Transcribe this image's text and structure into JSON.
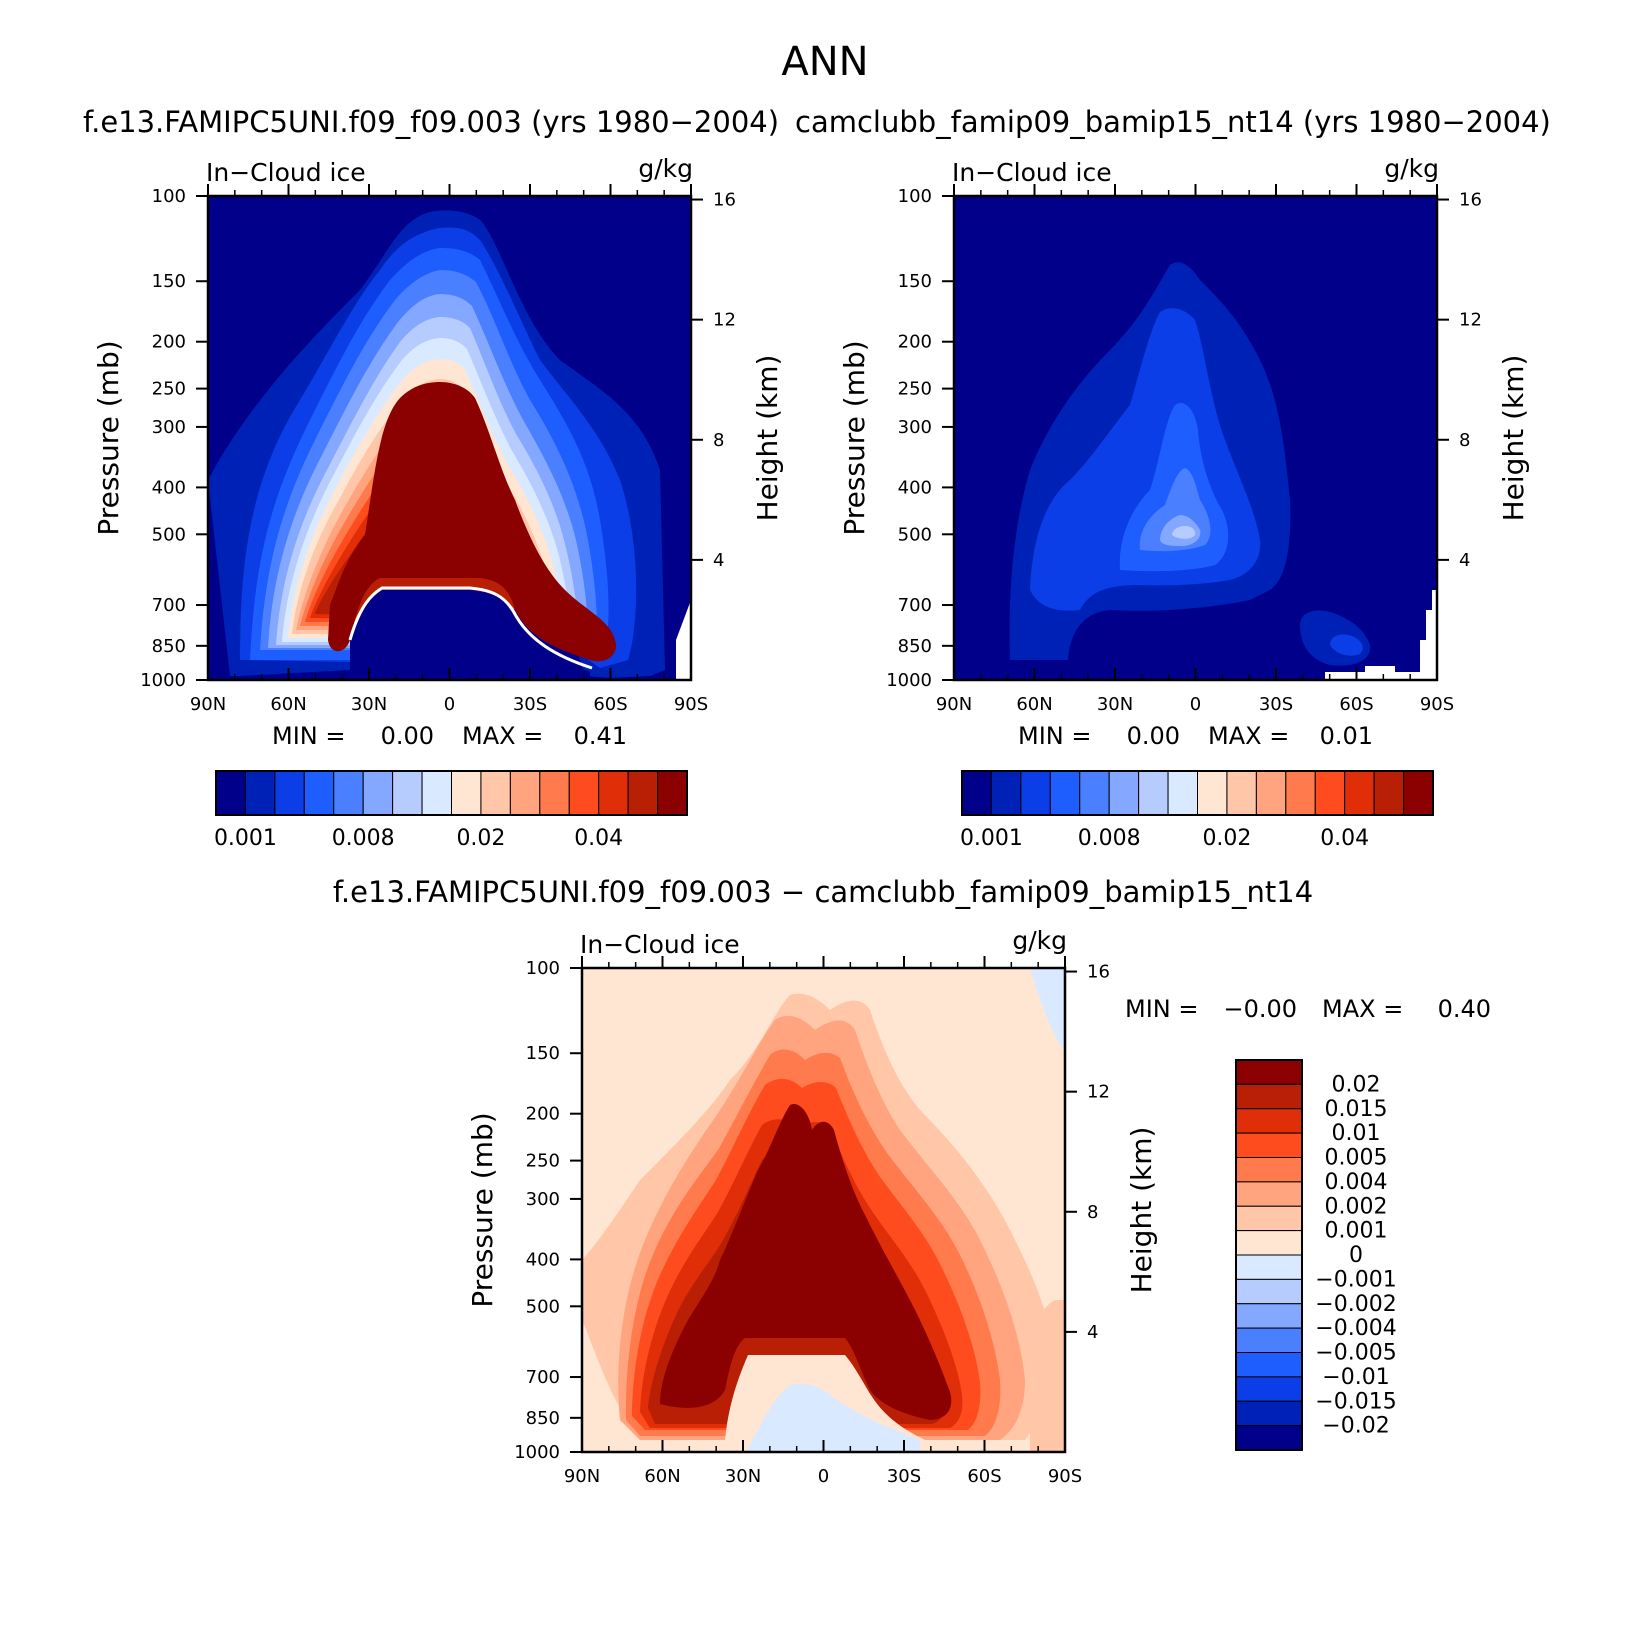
{
  "figure_title": "ANN",
  "chart_data": [
    {
      "type": "heatmap",
      "title": "f.e13.FAMIPC5UNI.f09_f09.003 (yrs 1980−2004)",
      "left_label": "In−Cloud ice",
      "right_label": "g/kg",
      "ylabel": "Pressure (mb)",
      "y2label": "Height (km)",
      "x_ticks": [
        "90N",
        "60N",
        "30N",
        "0",
        "30S",
        "60S",
        "90S"
      ],
      "y_ticks": [
        "100",
        "150",
        "200",
        "250",
        "300",
        "400",
        "500",
        "700",
        "850",
        "1000"
      ],
      "y_tick_values": [
        100,
        150,
        200,
        250,
        300,
        400,
        500,
        700,
        850,
        1000
      ],
      "y2_ticks": [
        "16",
        "12",
        "8",
        "4"
      ],
      "y2_tick_values": [
        16,
        12,
        8,
        4
      ],
      "xlim": [
        90,
        -90
      ],
      "ylim": [
        1000,
        100
      ],
      "min_label": "MIN =",
      "min_value": "0.00",
      "max_label": "MAX =",
      "max_value": "0.41",
      "colorbar_tick_labels": [
        "0.001",
        "0.008",
        "0.02",
        "0.04"
      ],
      "colorbar_colors": [
        "#00008a",
        "#0021b5",
        "#0b3ee6",
        "#1e5eff",
        "#4a7fff",
        "#84a8ff",
        "#b6ccff",
        "#d9e9ff",
        "#ffe6d2",
        "#ffc6a8",
        "#ffa47e",
        "#ff7a4c",
        "#ff4c1f",
        "#e02e08",
        "#b81f05",
        "#8b0000"
      ]
    },
    {
      "type": "heatmap",
      "title": "camclubb_famip09_bamip15_nt14 (yrs 1980−2004)",
      "left_label": "In−Cloud ice",
      "right_label": "g/kg",
      "ylabel": "Pressure (mb)",
      "y2label": "Height (km)",
      "x_ticks": [
        "90N",
        "60N",
        "30N",
        "0",
        "30S",
        "60S",
        "90S"
      ],
      "y_ticks": [
        "100",
        "150",
        "200",
        "250",
        "300",
        "400",
        "500",
        "700",
        "850",
        "1000"
      ],
      "y_tick_values": [
        100,
        150,
        200,
        250,
        300,
        400,
        500,
        700,
        850,
        1000
      ],
      "y2_ticks": [
        "16",
        "12",
        "8",
        "4"
      ],
      "y2_tick_values": [
        16,
        12,
        8,
        4
      ],
      "xlim": [
        90,
        -90
      ],
      "ylim": [
        1000,
        100
      ],
      "min_label": "MIN =",
      "min_value": "0.00",
      "max_label": "MAX =",
      "max_value": "0.01",
      "colorbar_tick_labels": [
        "0.001",
        "0.008",
        "0.02",
        "0.04"
      ],
      "colorbar_colors": [
        "#00008a",
        "#0021b5",
        "#0b3ee6",
        "#1e5eff",
        "#4a7fff",
        "#84a8ff",
        "#b6ccff",
        "#d9e9ff",
        "#ffe6d2",
        "#ffc6a8",
        "#ffa47e",
        "#ff7a4c",
        "#ff4c1f",
        "#e02e08",
        "#b81f05",
        "#8b0000"
      ]
    },
    {
      "type": "heatmap",
      "title": "f.e13.FAMIPC5UNI.f09_f09.003 − camclubb_famip09_bamip15_nt14",
      "left_label": "In−Cloud ice",
      "right_label": "g/kg",
      "ylabel": "Pressure (mb)",
      "y2label": "Height (km)",
      "x_ticks": [
        "90N",
        "60N",
        "30N",
        "0",
        "30S",
        "60S",
        "90S"
      ],
      "y_ticks": [
        "100",
        "150",
        "200",
        "250",
        "300",
        "400",
        "500",
        "700",
        "850",
        "1000"
      ],
      "y_tick_values": [
        100,
        150,
        200,
        250,
        300,
        400,
        500,
        700,
        850,
        1000
      ],
      "y2_ticks": [
        "16",
        "12",
        "8",
        "4"
      ],
      "y2_tick_values": [
        16,
        12,
        8,
        4
      ],
      "xlim": [
        90,
        -90
      ],
      "ylim": [
        1000,
        100
      ],
      "min_label": "MIN =",
      "min_value": "−0.00",
      "max_label": "MAX =",
      "max_value": "0.40",
      "colorbar_tick_labels": [
        "0.02",
        "0.015",
        "0.01",
        "0.005",
        "0.004",
        "0.002",
        "0.001",
        "0",
        "−0.001",
        "−0.002",
        "−0.004",
        "−0.005",
        "−0.01",
        "−0.015",
        "−0.02"
      ],
      "colorbar_colors": [
        "#8b0000",
        "#b81f05",
        "#e02e08",
        "#ff4c1f",
        "#ff7a4c",
        "#ffa47e",
        "#ffc6a8",
        "#ffe6d2",
        "#d9e9ff",
        "#b6ccff",
        "#84a8ff",
        "#4a7fff",
        "#1e5eff",
        "#0b3ee6",
        "#0021b5",
        "#00008a"
      ]
    }
  ]
}
